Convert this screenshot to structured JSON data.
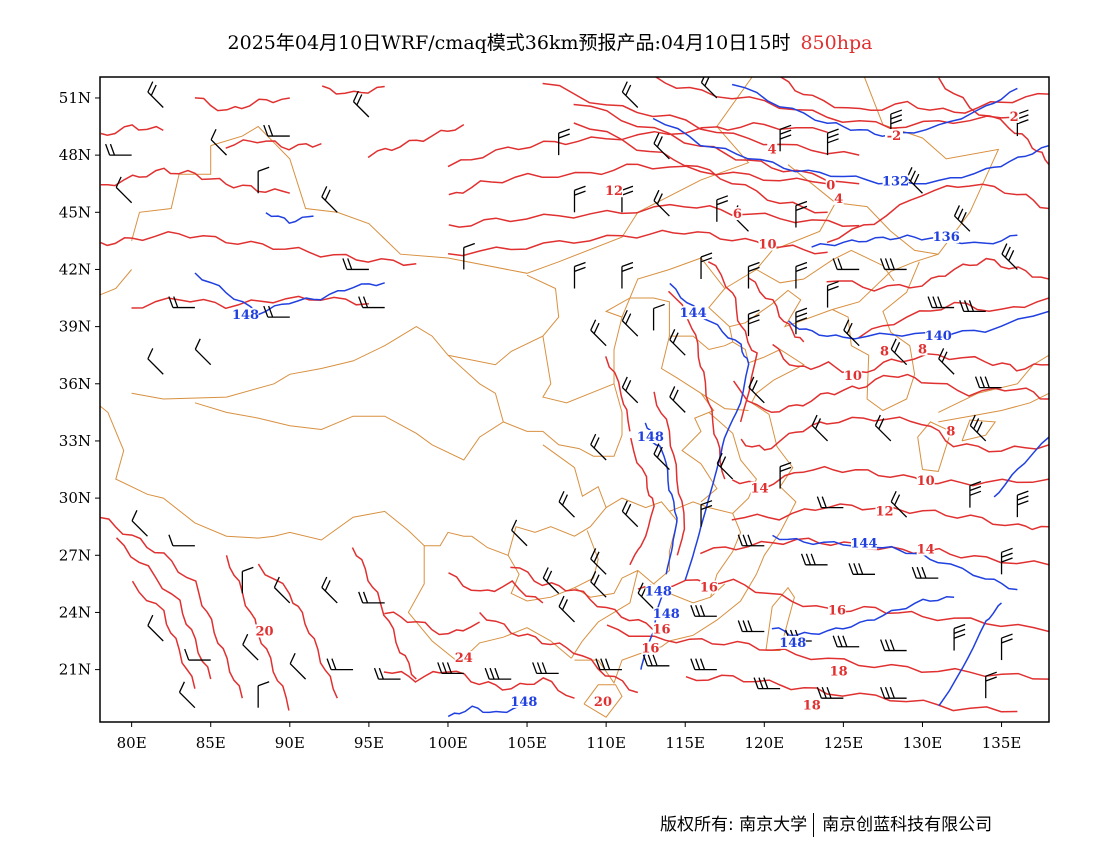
{
  "title": {
    "main": "2025年04月10日WRF/cmaq模式36km预报产品:04月10日15时",
    "level": "850hpa"
  },
  "axes": {
    "lon_labels": [
      "80E",
      "85E",
      "90E",
      "95E",
      "100E",
      "105E",
      "110E",
      "115E",
      "120E",
      "125E",
      "130E",
      "135E"
    ],
    "lat_labels": [
      "51N",
      "48N",
      "45N",
      "42N",
      "39N",
      "36N",
      "33N",
      "30N",
      "27N",
      "24N",
      "21N"
    ]
  },
  "contour_labels": {
    "temperature": [
      {
        "text": "2",
        "lon": 135.8,
        "lat": 49.9
      },
      {
        "text": "-2",
        "lon": 128.2,
        "lat": 48.9
      },
      {
        "text": "4",
        "lon": 120.5,
        "lat": 48.2
      },
      {
        "text": "0",
        "lon": 124.2,
        "lat": 46.3
      },
      {
        "text": "4",
        "lon": 124.7,
        "lat": 45.6
      },
      {
        "text": "12",
        "lon": 110.5,
        "lat": 46.0
      },
      {
        "text": "6",
        "lon": 118.3,
        "lat": 44.8
      },
      {
        "text": "10",
        "lon": 120.2,
        "lat": 43.2
      },
      {
        "text": "8",
        "lon": 127.6,
        "lat": 37.6
      },
      {
        "text": "8",
        "lon": 130.0,
        "lat": 37.7
      },
      {
        "text": "10",
        "lon": 125.6,
        "lat": 36.3
      },
      {
        "text": "8",
        "lon": 131.8,
        "lat": 33.4
      },
      {
        "text": "14",
        "lon": 119.7,
        "lat": 30.4
      },
      {
        "text": "10",
        "lon": 130.2,
        "lat": 30.8
      },
      {
        "text": "12",
        "lon": 127.6,
        "lat": 29.2
      },
      {
        "text": "14",
        "lon": 130.2,
        "lat": 27.2
      },
      {
        "text": "16",
        "lon": 116.5,
        "lat": 25.2
      },
      {
        "text": "16",
        "lon": 124.6,
        "lat": 24.0
      },
      {
        "text": "16",
        "lon": 113.5,
        "lat": 23.0
      },
      {
        "text": "16",
        "lon": 112.8,
        "lat": 22.0
      },
      {
        "text": "20",
        "lon": 88.4,
        "lat": 22.9
      },
      {
        "text": "24",
        "lon": 101.0,
        "lat": 21.5
      },
      {
        "text": "18",
        "lon": 124.7,
        "lat": 20.8
      },
      {
        "text": "18",
        "lon": 123.0,
        "lat": 19.0
      },
      {
        "text": "20",
        "lon": 109.8,
        "lat": 19.2
      }
    ],
    "geopotential": [
      {
        "text": "132",
        "lon": 128.3,
        "lat": 46.5
      },
      {
        "text": "136",
        "lon": 131.5,
        "lat": 43.6
      },
      {
        "text": "140",
        "lon": 131.0,
        "lat": 38.4
      },
      {
        "text": "144",
        "lon": 115.5,
        "lat": 39.6
      },
      {
        "text": "148",
        "lon": 87.2,
        "lat": 39.5
      },
      {
        "text": "148",
        "lon": 112.8,
        "lat": 33.1
      },
      {
        "text": "144",
        "lon": 126.3,
        "lat": 27.5
      },
      {
        "text": "148",
        "lon": 113.3,
        "lat": 25.0
      },
      {
        "text": "148",
        "lon": 113.8,
        "lat": 23.8
      },
      {
        "text": "148",
        "lon": 121.8,
        "lat": 22.3
      },
      {
        "text": "148",
        "lon": 104.8,
        "lat": 19.2
      }
    ]
  },
  "map_colors": {
    "temperature": "#e03030",
    "geopotential": "#2040e0",
    "boundary": "#d89040",
    "wind": "#000000"
  },
  "copyright": {
    "left": "版权所有: 南京大学",
    "right": "南京创蓝科技有限公司"
  }
}
